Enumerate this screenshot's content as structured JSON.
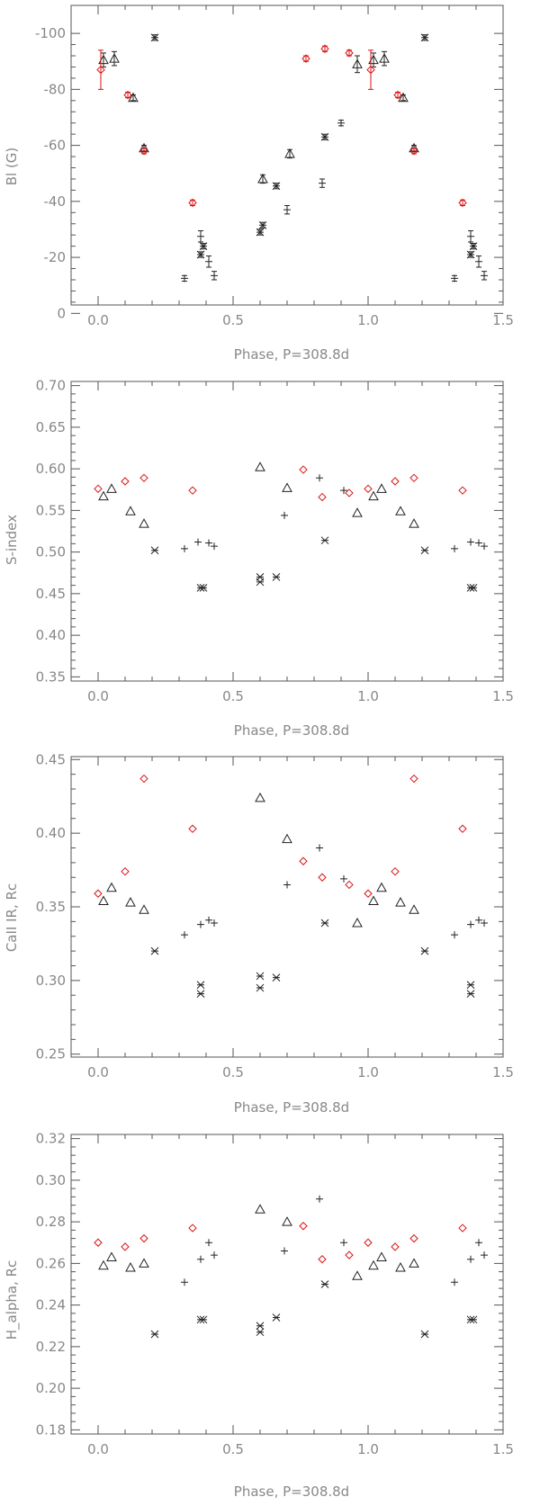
{
  "colors": {
    "axis": "#555555",
    "text": "#888888",
    "series_black": "#222222",
    "series_red": "#dd1111"
  },
  "chart_data": [
    {
      "type": "scatter",
      "xlabel": "Phase, P=308.8d",
      "ylabel": "Bl (G)",
      "xlim": [
        -0.1,
        1.5
      ],
      "ylim": [
        -3,
        -110
      ],
      "reversed_y": true,
      "xticks": [
        "0.0",
        "0.5",
        "1.0",
        "1.5"
      ],
      "xtick_values": [
        0,
        0.5,
        1.0,
        1.5
      ],
      "yticks": [
        "0",
        "-20",
        "-40",
        "-60",
        "-80",
        "-100"
      ],
      "ytick_values": [
        0,
        -20,
        -40,
        -60,
        -80,
        -100
      ],
      "series": [
        {
          "marker": "cross",
          "color": "black",
          "points": [
            {
              "x": 0.21,
              "y": -98.5,
              "err": 1
            },
            {
              "x": 0.38,
              "y": -21,
              "err": 1
            },
            {
              "x": 0.39,
              "y": -24,
              "err": 1
            },
            {
              "x": 0.6,
              "y": -29,
              "err": 1
            },
            {
              "x": 0.61,
              "y": -31.5,
              "err": 1
            },
            {
              "x": 0.66,
              "y": -45.5,
              "err": 1
            },
            {
              "x": 0.84,
              "y": -63,
              "err": 1
            },
            {
              "x": 1.21,
              "y": -98.5,
              "err": 1
            },
            {
              "x": 1.38,
              "y": -21,
              "err": 1
            },
            {
              "x": 1.39,
              "y": -24,
              "err": 1
            }
          ]
        },
        {
          "marker": "triangle",
          "color": "black",
          "points": [
            {
              "x": 0.02,
              "y": -90.5,
              "err": 2.5
            },
            {
              "x": 0.06,
              "y": -91,
              "err": 2.5
            },
            {
              "x": 0.13,
              "y": -77,
              "err": 1
            },
            {
              "x": 0.17,
              "y": -59,
              "err": 1
            },
            {
              "x": 0.61,
              "y": -48,
              "err": 1.5
            },
            {
              "x": 0.71,
              "y": -57,
              "err": 1.5
            },
            {
              "x": 0.96,
              "y": -89,
              "err": 3
            },
            {
              "x": 1.02,
              "y": -90.5,
              "err": 2.5
            },
            {
              "x": 1.06,
              "y": -91,
              "err": 2.5
            },
            {
              "x": 1.13,
              "y": -77,
              "err": 1
            },
            {
              "x": 1.17,
              "y": -59,
              "err": 1
            }
          ]
        },
        {
          "marker": "plus",
          "color": "black",
          "points": [
            {
              "x": 0.32,
              "y": -12.5,
              "err": 1
            },
            {
              "x": 0.38,
              "y": -27.5,
              "err": 2
            },
            {
              "x": 0.41,
              "y": -18.5,
              "err": 2
            },
            {
              "x": 0.43,
              "y": -13.5,
              "err": 1.5
            },
            {
              "x": 0.7,
              "y": -37,
              "err": 1.5
            },
            {
              "x": 0.83,
              "y": -46.5,
              "err": 1.5
            },
            {
              "x": 0.9,
              "y": -68,
              "err": 1
            },
            {
              "x": 1.32,
              "y": -12.5,
              "err": 1
            },
            {
              "x": 1.38,
              "y": -27.5,
              "err": 2
            },
            {
              "x": 1.41,
              "y": -18.5,
              "err": 2
            },
            {
              "x": 1.43,
              "y": -13.5,
              "err": 1.5
            }
          ]
        },
        {
          "marker": "diamond",
          "color": "red",
          "points": [
            {
              "x": 0.01,
              "y": -87,
              "err": 7
            },
            {
              "x": 0.11,
              "y": -78,
              "err": 1
            },
            {
              "x": 0.17,
              "y": -58,
              "err": 1
            },
            {
              "x": 0.35,
              "y": -39.5,
              "err": 1
            },
            {
              "x": 0.77,
              "y": -91,
              "err": 1
            },
            {
              "x": 0.84,
              "y": -94.5,
              "err": 1
            },
            {
              "x": 0.93,
              "y": -93,
              "err": 1
            },
            {
              "x": 1.01,
              "y": -87,
              "err": 7
            },
            {
              "x": 1.11,
              "y": -78,
              "err": 1
            },
            {
              "x": 1.17,
              "y": -58,
              "err": 1
            },
            {
              "x": 1.35,
              "y": -39.5,
              "err": 1
            }
          ]
        }
      ]
    },
    {
      "type": "scatter",
      "xlabel": "Phase, P=308.8d",
      "ylabel": "S-index",
      "xlim": [
        -0.1,
        1.5
      ],
      "ylim": [
        0.345,
        0.705
      ],
      "xticks": [
        "0.0",
        "0.5",
        "1.0",
        "1.5"
      ],
      "xtick_values": [
        0,
        0.5,
        1.0,
        1.5
      ],
      "yticks": [
        "0.35",
        "0.40",
        "0.45",
        "0.50",
        "0.55",
        "0.60",
        "0.65",
        "0.70"
      ],
      "ytick_values": [
        0.35,
        0.4,
        0.45,
        0.5,
        0.55,
        0.6,
        0.65,
        0.7
      ],
      "series": [
        {
          "marker": "cross",
          "color": "black",
          "points": [
            {
              "x": 0.21,
              "y": 0.502
            },
            {
              "x": 0.38,
              "y": 0.457
            },
            {
              "x": 0.39,
              "y": 0.457
            },
            {
              "x": 0.6,
              "y": 0.47
            },
            {
              "x": 0.6,
              "y": 0.464
            },
            {
              "x": 0.66,
              "y": 0.47
            },
            {
              "x": 0.84,
              "y": 0.514
            },
            {
              "x": 1.21,
              "y": 0.502
            },
            {
              "x": 1.38,
              "y": 0.457
            },
            {
              "x": 1.39,
              "y": 0.457
            }
          ]
        },
        {
          "marker": "triangle",
          "color": "black",
          "points": [
            {
              "x": 0.02,
              "y": 0.567
            },
            {
              "x": 0.05,
              "y": 0.576
            },
            {
              "x": 0.12,
              "y": 0.549
            },
            {
              "x": 0.17,
              "y": 0.534
            },
            {
              "x": 0.6,
              "y": 0.602
            },
            {
              "x": 0.7,
              "y": 0.577
            },
            {
              "x": 0.96,
              "y": 0.547
            },
            {
              "x": 1.02,
              "y": 0.567
            },
            {
              "x": 1.05,
              "y": 0.576
            },
            {
              "x": 1.12,
              "y": 0.549
            },
            {
              "x": 1.17,
              "y": 0.534
            }
          ]
        },
        {
          "marker": "plus",
          "color": "black",
          "points": [
            {
              "x": 0.32,
              "y": 0.504
            },
            {
              "x": 0.37,
              "y": 0.512
            },
            {
              "x": 0.41,
              "y": 0.511
            },
            {
              "x": 0.43,
              "y": 0.507
            },
            {
              "x": 0.69,
              "y": 0.544
            },
            {
              "x": 0.82,
              "y": 0.589
            },
            {
              "x": 0.91,
              "y": 0.574
            },
            {
              "x": 1.32,
              "y": 0.504
            },
            {
              "x": 1.38,
              "y": 0.512
            },
            {
              "x": 1.41,
              "y": 0.511
            },
            {
              "x": 1.43,
              "y": 0.507
            }
          ]
        },
        {
          "marker": "diamond",
          "color": "red",
          "points": [
            {
              "x": 0.0,
              "y": 0.576
            },
            {
              "x": 0.1,
              "y": 0.585
            },
            {
              "x": 0.17,
              "y": 0.589
            },
            {
              "x": 0.35,
              "y": 0.574
            },
            {
              "x": 0.76,
              "y": 0.599
            },
            {
              "x": 0.83,
              "y": 0.566
            },
            {
              "x": 0.93,
              "y": 0.571
            },
            {
              "x": 1.0,
              "y": 0.576
            },
            {
              "x": 1.1,
              "y": 0.585
            },
            {
              "x": 1.17,
              "y": 0.589
            },
            {
              "x": 1.35,
              "y": 0.574
            }
          ]
        }
      ]
    },
    {
      "type": "scatter",
      "xlabel": "Phase, P=308.8d",
      "ylabel": "CaII IR, Rc",
      "xlim": [
        -0.1,
        1.5
      ],
      "ylim": [
        0.248,
        0.452
      ],
      "xticks": [
        "0.0",
        "0.5",
        "1.0",
        "1.5"
      ],
      "xtick_values": [
        0,
        0.5,
        1.0,
        1.5
      ],
      "yticks": [
        "0.25",
        "0.30",
        "0.35",
        "0.40",
        "0.45"
      ],
      "ytick_values": [
        0.25,
        0.3,
        0.35,
        0.4,
        0.45
      ],
      "series": [
        {
          "marker": "cross",
          "color": "black",
          "points": [
            {
              "x": 0.21,
              "y": 0.32
            },
            {
              "x": 0.38,
              "y": 0.297
            },
            {
              "x": 0.38,
              "y": 0.291
            },
            {
              "x": 0.6,
              "y": 0.303
            },
            {
              "x": 0.6,
              "y": 0.295
            },
            {
              "x": 0.66,
              "y": 0.302
            },
            {
              "x": 0.84,
              "y": 0.339
            },
            {
              "x": 1.21,
              "y": 0.32
            },
            {
              "x": 1.38,
              "y": 0.297
            },
            {
              "x": 1.38,
              "y": 0.291
            }
          ]
        },
        {
          "marker": "triangle",
          "color": "black",
          "points": [
            {
              "x": 0.02,
              "y": 0.354
            },
            {
              "x": 0.05,
              "y": 0.363
            },
            {
              "x": 0.12,
              "y": 0.353
            },
            {
              "x": 0.17,
              "y": 0.348
            },
            {
              "x": 0.6,
              "y": 0.424
            },
            {
              "x": 0.7,
              "y": 0.396
            },
            {
              "x": 0.96,
              "y": 0.339
            },
            {
              "x": 1.02,
              "y": 0.354
            },
            {
              "x": 1.05,
              "y": 0.363
            },
            {
              "x": 1.12,
              "y": 0.353
            },
            {
              "x": 1.17,
              "y": 0.348
            }
          ]
        },
        {
          "marker": "plus",
          "color": "black",
          "points": [
            {
              "x": 0.32,
              "y": 0.331
            },
            {
              "x": 0.38,
              "y": 0.338
            },
            {
              "x": 0.41,
              "y": 0.341
            },
            {
              "x": 0.43,
              "y": 0.339
            },
            {
              "x": 0.7,
              "y": 0.365
            },
            {
              "x": 0.82,
              "y": 0.39
            },
            {
              "x": 0.91,
              "y": 0.369
            },
            {
              "x": 1.32,
              "y": 0.331
            },
            {
              "x": 1.38,
              "y": 0.338
            },
            {
              "x": 1.41,
              "y": 0.341
            },
            {
              "x": 1.43,
              "y": 0.339
            }
          ]
        },
        {
          "marker": "diamond",
          "color": "red",
          "points": [
            {
              "x": 0.0,
              "y": 0.359
            },
            {
              "x": 0.1,
              "y": 0.374
            },
            {
              "x": 0.17,
              "y": 0.437
            },
            {
              "x": 0.35,
              "y": 0.403
            },
            {
              "x": 0.76,
              "y": 0.381
            },
            {
              "x": 0.83,
              "y": 0.37
            },
            {
              "x": 0.93,
              "y": 0.365
            },
            {
              "x": 1.0,
              "y": 0.359
            },
            {
              "x": 1.1,
              "y": 0.374
            },
            {
              "x": 1.17,
              "y": 0.437
            },
            {
              "x": 1.35,
              "y": 0.403
            }
          ]
        }
      ]
    },
    {
      "type": "scatter",
      "xlabel": "Phase, P=308.8d",
      "ylabel": "H_alpha, Rc",
      "xlim": [
        -0.1,
        1.5
      ],
      "ylim": [
        0.178,
        0.322
      ],
      "xticks": [
        "0.0",
        "0.5",
        "1.0",
        "1.5"
      ],
      "xtick_values": [
        0,
        0.5,
        1.0,
        1.5
      ],
      "yticks": [
        "0.18",
        "0.20",
        "0.22",
        "0.24",
        "0.26",
        "0.28",
        "0.30",
        "0.32"
      ],
      "ytick_values": [
        0.18,
        0.2,
        0.22,
        0.24,
        0.26,
        0.28,
        0.3,
        0.32
      ],
      "series": [
        {
          "marker": "cross",
          "color": "black",
          "points": [
            {
              "x": 0.21,
              "y": 0.226
            },
            {
              "x": 0.38,
              "y": 0.233
            },
            {
              "x": 0.39,
              "y": 0.233
            },
            {
              "x": 0.6,
              "y": 0.23
            },
            {
              "x": 0.6,
              "y": 0.227
            },
            {
              "x": 0.66,
              "y": 0.234
            },
            {
              "x": 0.84,
              "y": 0.25
            },
            {
              "x": 1.21,
              "y": 0.226
            },
            {
              "x": 1.38,
              "y": 0.233
            },
            {
              "x": 1.39,
              "y": 0.233
            }
          ]
        },
        {
          "marker": "triangle",
          "color": "black",
          "points": [
            {
              "x": 0.02,
              "y": 0.259
            },
            {
              "x": 0.05,
              "y": 0.263
            },
            {
              "x": 0.12,
              "y": 0.258
            },
            {
              "x": 0.17,
              "y": 0.26
            },
            {
              "x": 0.6,
              "y": 0.286
            },
            {
              "x": 0.7,
              "y": 0.28
            },
            {
              "x": 0.96,
              "y": 0.254
            },
            {
              "x": 1.02,
              "y": 0.259
            },
            {
              "x": 1.05,
              "y": 0.263
            },
            {
              "x": 1.12,
              "y": 0.258
            },
            {
              "x": 1.17,
              "y": 0.26
            }
          ]
        },
        {
          "marker": "plus",
          "color": "black",
          "points": [
            {
              "x": 0.32,
              "y": 0.251
            },
            {
              "x": 0.38,
              "y": 0.262
            },
            {
              "x": 0.41,
              "y": 0.27
            },
            {
              "x": 0.43,
              "y": 0.264
            },
            {
              "x": 0.69,
              "y": 0.266
            },
            {
              "x": 0.82,
              "y": 0.291
            },
            {
              "x": 0.91,
              "y": 0.27
            },
            {
              "x": 1.32,
              "y": 0.251
            },
            {
              "x": 1.38,
              "y": 0.262
            },
            {
              "x": 1.41,
              "y": 0.27
            },
            {
              "x": 1.43,
              "y": 0.264
            }
          ]
        },
        {
          "marker": "diamond",
          "color": "red",
          "points": [
            {
              "x": 0.0,
              "y": 0.27
            },
            {
              "x": 0.1,
              "y": 0.268
            },
            {
              "x": 0.17,
              "y": 0.272
            },
            {
              "x": 0.35,
              "y": 0.277
            },
            {
              "x": 0.76,
              "y": 0.278
            },
            {
              "x": 0.83,
              "y": 0.262
            },
            {
              "x": 0.93,
              "y": 0.264
            },
            {
              "x": 1.0,
              "y": 0.27
            },
            {
              "x": 1.1,
              "y": 0.268
            },
            {
              "x": 1.17,
              "y": 0.272
            },
            {
              "x": 1.35,
              "y": 0.277
            }
          ]
        }
      ]
    }
  ]
}
